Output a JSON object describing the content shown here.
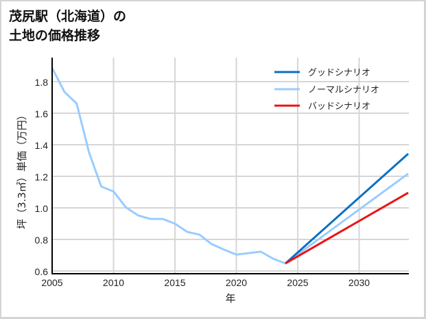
{
  "title_line1": "茂尻駅（北海道）の",
  "title_line2": "土地の価格推移",
  "chart_data": {
    "type": "line",
    "title": "茂尻駅（北海道）の土地の価格推移",
    "xlabel": "年",
    "ylabel": "坪（3.3㎡）単価（万円）",
    "xlim": [
      2005,
      2034
    ],
    "ylim": [
      0.6,
      1.95
    ],
    "xticks": [
      2005,
      2010,
      2015,
      2020,
      2025,
      2030
    ],
    "yticks": [
      0.6,
      0.8,
      1.0,
      1.2,
      1.4,
      1.6,
      1.8
    ],
    "ytick_labels": [
      "0.6",
      "0.8",
      "1.0",
      "1.2",
      "1.4",
      "1.6",
      "1.8"
    ],
    "grid": true,
    "legend_position": "upper right",
    "series": [
      {
        "name": "グッドシナリオ",
        "color": "#0a6fc2",
        "x": [
          2024,
          2034
        ],
        "values": [
          0.648,
          1.343
        ]
      },
      {
        "name": "ノーマルシナリオ",
        "color": "#99ccff",
        "x": [
          2005,
          2006,
          2007,
          2008,
          2009,
          2010,
          2011,
          2012,
          2013,
          2014,
          2015,
          2016,
          2017,
          2018,
          2019,
          2020,
          2021,
          2022,
          2023,
          2024,
          2034
        ],
        "values": [
          1.887,
          1.735,
          1.661,
          1.352,
          1.135,
          1.104,
          1.004,
          0.952,
          0.93,
          0.93,
          0.9,
          0.848,
          0.83,
          0.77,
          0.735,
          0.704,
          0.713,
          0.722,
          0.678,
          0.648,
          1.217
        ]
      },
      {
        "name": "バッドシナリオ",
        "color": "#ee1111",
        "x": [
          2024,
          2034
        ],
        "values": [
          0.648,
          1.096
        ]
      }
    ]
  },
  "legend": {
    "good": "グッドシナリオ",
    "normal": "ノーマルシナリオ",
    "bad": "バッドシナリオ"
  },
  "axes": {
    "xlabel": "年",
    "ylabel": "坪（3.3㎡）単価（万円）"
  }
}
